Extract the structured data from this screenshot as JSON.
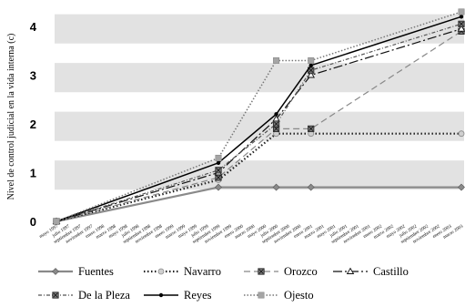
{
  "chart_data": {
    "type": "line",
    "ylabel": "Nivel de control judicial en la vida interna (c)",
    "ylim": [
      0,
      4.4
    ],
    "yticks": [
      0,
      1,
      2,
      3,
      4
    ],
    "grid": "horizontal bands",
    "legend_position": "bottom",
    "x": [
      "mayo 1997",
      "julio 1997",
      "septiembre 1997",
      "noviembre 1997",
      "enero 1998",
      "marzo 1998",
      "mayo 1998",
      "julio 1998",
      "septiembre 1998",
      "noviembre 1998",
      "enero 1999",
      "marzo 1999",
      "mayo 1999",
      "julio 1999",
      "septiembre 1999",
      "noviembre 1999",
      "enero 2000",
      "marzo 2000",
      "mayo 2000",
      "julio 2000",
      "septiembre 2000",
      "noviembre 2000",
      "enero 2001",
      "marzo 2001",
      "mayo 2001",
      "julio 2001",
      "septiembre 2001",
      "noviembre 2001",
      "enero 2002",
      "marzo 2002",
      "mayo 2002",
      "julio 2002",
      "septiembre 2002",
      "noviembre 2002",
      "enero 2003",
      "marzo 2003"
    ],
    "series": [
      {
        "name": "Fuentes",
        "color": "#8a8a8a",
        "dash": "",
        "width": 2.2,
        "marker": "diamond",
        "points": [
          [
            0,
            0
          ],
          [
            14,
            0.7
          ],
          [
            19,
            0.7
          ],
          [
            22,
            0.7
          ],
          [
            35,
            0.7
          ]
        ]
      },
      {
        "name": "Navarro",
        "color": "#222222",
        "dash": "1.5 2.5",
        "width": 2.2,
        "marker": "circle-light",
        "points": [
          [
            0,
            0
          ],
          [
            14,
            0.85
          ],
          [
            19,
            1.8
          ],
          [
            22,
            1.8
          ],
          [
            35,
            1.8
          ]
        ]
      },
      {
        "name": "Orozco",
        "color": "#888888",
        "dash": "7 4",
        "width": 1.2,
        "marker": "square-x",
        "points": [
          [
            0,
            0
          ],
          [
            14,
            0.9
          ],
          [
            19,
            1.9
          ],
          [
            22,
            1.9
          ],
          [
            35,
            3.9
          ]
        ]
      },
      {
        "name": "Castillo",
        "color": "#111111",
        "dash": "10 3 2 3",
        "width": 1.2,
        "marker": "triangle",
        "points": [
          [
            0,
            0
          ],
          [
            14,
            1.0
          ],
          [
            19,
            2.1
          ],
          [
            22,
            3.0
          ],
          [
            35,
            3.95
          ]
        ]
      },
      {
        "name": "De la Pleza",
        "color": "#555555",
        "dash": "4 2 1 2",
        "width": 1.2,
        "marker": "square-x",
        "points": [
          [
            0,
            0
          ],
          [
            14,
            1.05
          ],
          [
            19,
            2.0
          ],
          [
            22,
            3.1
          ],
          [
            35,
            4.05
          ]
        ]
      },
      {
        "name": "Reyes",
        "color": "#000000",
        "dash": "",
        "width": 1.5,
        "marker": "dot",
        "points": [
          [
            0,
            0
          ],
          [
            14,
            1.2
          ],
          [
            19,
            2.2
          ],
          [
            22,
            3.2
          ],
          [
            35,
            4.2
          ]
        ]
      },
      {
        "name": "Ojesto",
        "color": "#777777",
        "dash": "1.5 2",
        "width": 1.5,
        "marker": "square-grey",
        "points": [
          [
            0,
            0
          ],
          [
            14,
            1.3
          ],
          [
            19,
            3.3
          ],
          [
            22,
            3.3
          ],
          [
            35,
            4.3
          ]
        ]
      }
    ]
  }
}
